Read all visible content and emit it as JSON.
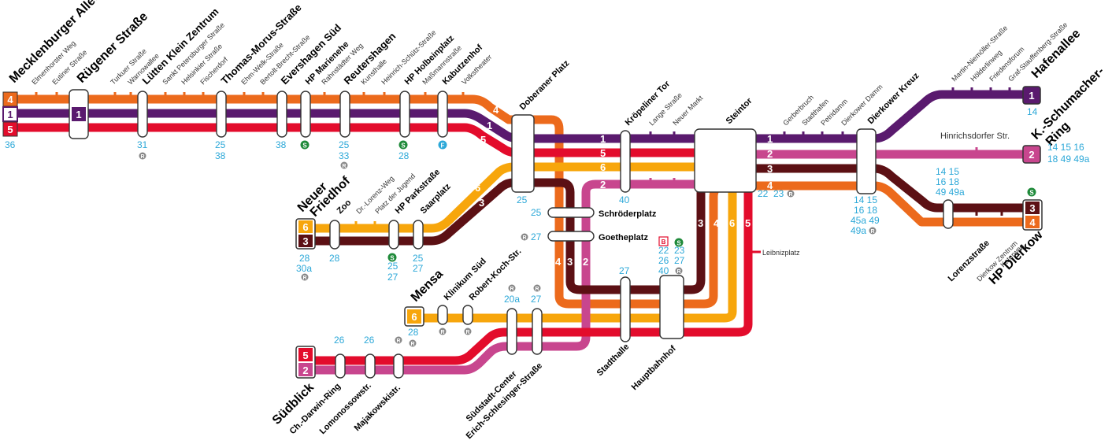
{
  "colors": {
    "line_1": "#5a1a6e",
    "line_2": "#c8468e",
    "line_3": "#5c1014",
    "line_4": "#ec6a1c",
    "line_5": "#e30c2c",
    "line_6": "#f7a60c",
    "bus": "#2ca8d8",
    "sbahn": "#1f8a3a",
    "rail": "#888888"
  },
  "lines": [
    "1",
    "2",
    "3",
    "4",
    "5",
    "6"
  ],
  "stations": {
    "mecklenburger_allee": "Mecklenburger Allee",
    "elmenhorster_weg": "Elmenhorster Weg",
    "eutiner_str": "Eutiner Straße",
    "ruegener_str": "Rügener Straße",
    "turkuer_str": "Turkuer Straße",
    "warnowallee": "Warnowallee",
    "luetten_klein": "Lütten Klein Zentrum",
    "sankt_petersburger": "Sankt Petersburger Straße",
    "helsinkier": "Helsinkier Straße",
    "fischerdorf": "Fischerdorf",
    "thomas_morus": "Thomas-Morus-Straße",
    "ehm_welk": "Ehm-Welk-Straße",
    "bertolt_brecht": "Bertolt-Brecht-Straße",
    "evershagen_sued": "Evershagen Süd",
    "hp_marienehe": "HP Marienehe",
    "rahnstaedter": "Rahnstädter Weg",
    "reutershagen": "Reutershagen",
    "kunsthalle": "Kunsthalle",
    "heinrich_schuetz": "Heinrich-Schütz-Straße",
    "hp_holbeinplatz": "HP Holbeinplatz",
    "massmannstr": "Maßmannstraße",
    "kabutzenhof": "Kabutzenhof",
    "volkstheater": "Volkstheater",
    "doberaner_platz": "Doberaner Platz",
    "kroepeliner_tor": "Kröpeliner Tor",
    "lange_str": "Lange Straße",
    "neuer_markt": "Neuer Markt",
    "steintor": "Steintor",
    "gerberbruch": "Gerberbruch",
    "stadthafen": "Stadthafen",
    "petridamm": "Petridamm",
    "dierkower_damm": "Dierkower Damm",
    "dierkower_kreuz": "Dierkower Kreuz",
    "martin_niemoeller": "Martin-Niemöller-Straße",
    "hoelderlinweg": "Hölderlinweg",
    "friedensforum": "Friedensforum",
    "graf_stauffenberg": "Graf-Stauffenberg-Straße",
    "hafenallee": "Hafenallee",
    "hinrichsdorfer": "Hinrichsdorfer Str.",
    "k_schumacher_1": "K.-Schumacher-",
    "k_schumacher_2": "Ring",
    "lorenzstr": "Lorenzstraße",
    "dierkow_zentrum": "Dierkow Zentrum",
    "katerweg": "Katerweg",
    "hp_dierkow": "HP Dierkow",
    "neuer_friedhof_1": "Neuer",
    "neuer_friedhof_2": "Friedhof",
    "zoo": "Zoo",
    "dr_lorenz": "Dr.-Lorenz-Weg",
    "platz_jugend": "Platz der Jugend",
    "hp_parkstr": "HP Parkstraße",
    "saarplatz": "Saarplatz",
    "schroederplatz": "Schröderplatz",
    "goetheplatz": "Goetheplatz",
    "leibnizplatz": "Leibnizplatz",
    "mensa": "Mensa",
    "klinikum_sued": "Klinikum Süd",
    "robert_koch": "Robert-Koch-Str.",
    "suedblick": "Südblick",
    "ch_darwin": "Ch.-Darwin-Ring",
    "lomonossow": "Lomonossowstr.",
    "majakowski": "Majakowskistr.",
    "suedstadt_center": "Südstadt-Center",
    "erich_schlesinger": "Erich-Schlesinger-Straße",
    "stadthalle": "Stadthalle",
    "hauptbahnhof": "Hauptbahnhof"
  },
  "bus": {
    "mecklenburger": "36",
    "luetten_klein": "31",
    "thomas_morus_1": "25",
    "thomas_morus_2": "38",
    "evershagen": "38",
    "reutershagen_1": "25",
    "reutershagen_2": "33",
    "holbeinplatz": "28",
    "doberaner": "25",
    "kroepeliner": "40",
    "steintor_1": "22",
    "steintor_2": "23",
    "dierkower_kreuz": [
      "14  15",
      "16  18",
      "45a 49",
      "49a"
    ],
    "hafenallee": "14",
    "kschumacher_1": "14  15  16",
    "kschumacher_2": "18  49  49a",
    "lorenz": [
      "14  15",
      "16  18",
      "49  49a"
    ],
    "neuer_friedhof": [
      "28",
      "30a"
    ],
    "zoo": "28",
    "parkstr": [
      "25",
      "27"
    ],
    "saarplatz": [
      "25",
      "27"
    ],
    "schroederplatz": "25",
    "goetheplatz": "27",
    "leibniz_1": [
      "22",
      "26",
      "40"
    ],
    "leibniz_2": [
      "23",
      "27"
    ],
    "stadthalle": "27",
    "mensa": "28",
    "ch_darwin": "26",
    "lomonossow": "26",
    "suedstadt": "20a",
    "erich_schlesinger": "27"
  },
  "symbols": {
    "sbahn": "S",
    "rail": "R",
    "ferry": "F",
    "bus_stop": "B"
  }
}
